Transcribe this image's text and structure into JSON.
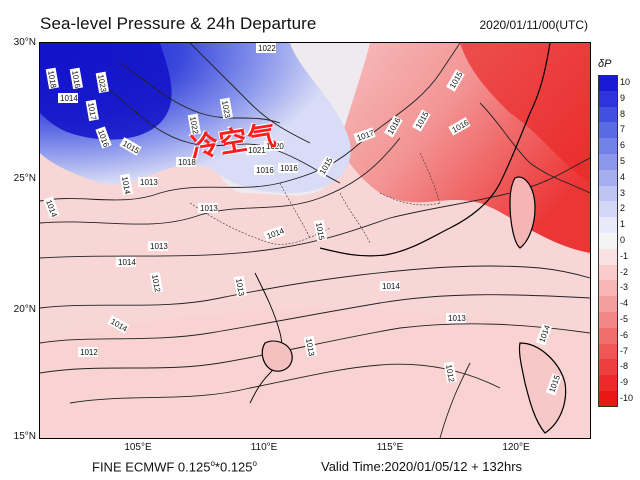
{
  "title": "Sea-level Pressure & 24h Departure",
  "valid_date": "2020/01/11/00(UTC)",
  "annotation": "冷空气",
  "axes": {
    "lat_labels": [
      "30°N",
      "25°N",
      "20°N",
      "15°N"
    ],
    "lon_labels": [
      "105°E",
      "110°E",
      "115°E",
      "120°E"
    ]
  },
  "footer": {
    "model": "FINE ECMWF 0.125",
    "res_tail": "*0.125",
    "deg": "o",
    "valid_time": "Valid Time:2020/01/05/12 + 132hrs"
  },
  "legend": {
    "title": "δP",
    "labels": [
      "10",
      "9",
      "8",
      "7",
      "6",
      "5",
      "4",
      "3",
      "2",
      "1",
      "0",
      "-1",
      "-2",
      "-3",
      "-4",
      "-5",
      "-6",
      "-7",
      "-8",
      "-9",
      "-10"
    ],
    "colors": [
      "#1a1ad6",
      "#2e34dc",
      "#4250e0",
      "#5a6ae4",
      "#7382e8",
      "#8c98ec",
      "#a6aef0",
      "#bec4f4",
      "#d4d8f8",
      "#e8eaf9",
      "#f4f4f4",
      "#fbe2e2",
      "#f9cccc",
      "#f7b6b6",
      "#f59e9e",
      "#f38686",
      "#f16e6e",
      "#ef5656",
      "#ed3f3f",
      "#ec2a2a",
      "#ea1717"
    ]
  },
  "isobar_labels": [
    "1018",
    "1016",
    "1023",
    "1017",
    "1014",
    "1016",
    "1015",
    "1022",
    "1023",
    "1022",
    "1021",
    "1020",
    "1018",
    "1016",
    "1014",
    "1013",
    "1014",
    "1013",
    "1014",
    "1012",
    "1013",
    "1013",
    "1014",
    "1012",
    "1014",
    "1013",
    "1015",
    "1016",
    "1015",
    "1017",
    "1016",
    "1015",
    "1014",
    "1013",
    "1012",
    "1015",
    "1016",
    "1014",
    "1015"
  ]
}
